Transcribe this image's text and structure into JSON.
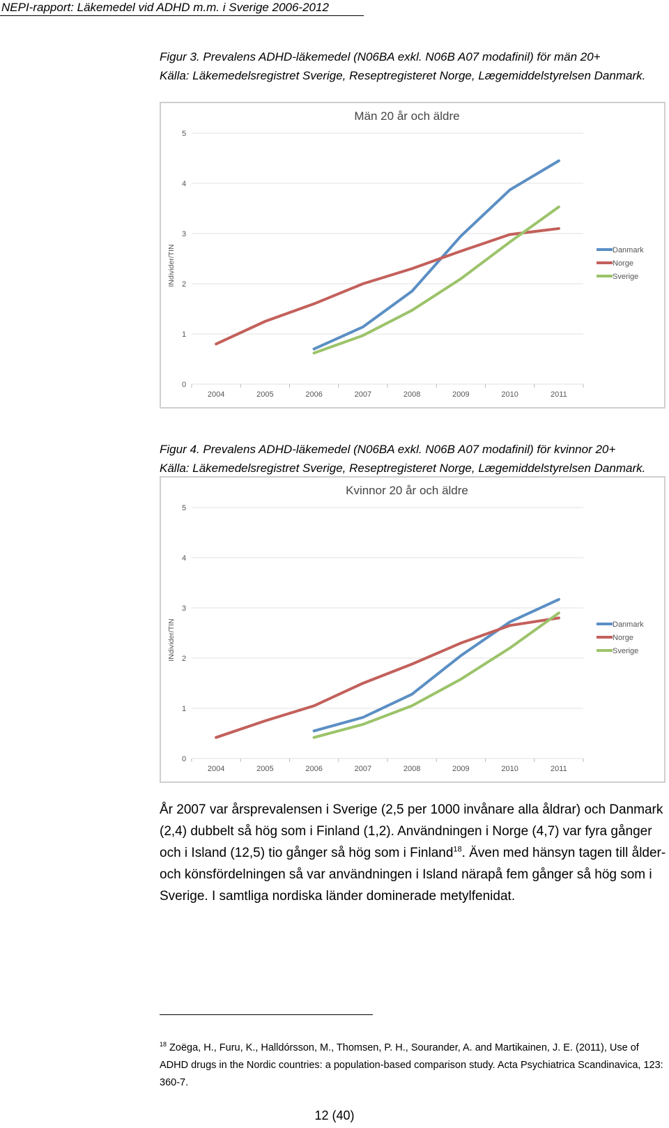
{
  "header": {
    "running_title": "NEPI-rapport: Läkemedel vid ADHD m.m. i Sverige 2006-2012"
  },
  "figure3": {
    "caption_line1": "Figur 3. Prevalens ADHD-läkemedel (N06BA exkl. N06B A07 modafinil) för män 20+",
    "caption_line2": "Källa: Läkemedelsregistret Sverige, Reseptregisteret Norge, Lægemiddelstyrelsen Danmark."
  },
  "figure4": {
    "caption_line1": "Figur 4. Prevalens ADHD-läkemedel (N06BA exkl. N06B A07 modafinil) för kvinnor 20+",
    "caption_line2": "Källa: Läkemedelsregistret Sverige, Reseptregisteret Norge, Lægemiddelstyrelsen Danmark."
  },
  "chart_data": [
    {
      "type": "line",
      "title": "Män 20 år och äldre",
      "xlabel": "",
      "ylabel": "INdivider/TIN",
      "categories": [
        "2004",
        "2005",
        "2006",
        "2007",
        "2008",
        "2009",
        "2010",
        "2011"
      ],
      "yticks": [
        "0",
        "1",
        "2",
        "3",
        "4",
        "5"
      ],
      "ylim": [
        0,
        5
      ],
      "grid": true,
      "legend": "right",
      "series": [
        {
          "name": "Danmark",
          "color": "#5b8fc4",
          "values": [
            null,
            null,
            0.7,
            1.14,
            1.85,
            2.95,
            3.87,
            4.45
          ]
        },
        {
          "name": "Norge",
          "color": "#c3605b",
          "values": [
            0.8,
            1.25,
            1.6,
            2.0,
            2.3,
            2.65,
            2.98,
            3.1
          ]
        },
        {
          "name": "Sverige",
          "color": "#9cc36a",
          "values": [
            null,
            null,
            0.62,
            0.97,
            1.47,
            2.1,
            2.83,
            3.53
          ]
        }
      ]
    },
    {
      "type": "line",
      "title": "Kvinnor 20 år och äldre",
      "xlabel": "",
      "ylabel": "INdivider/TIN",
      "categories": [
        "2004",
        "2005",
        "2006",
        "2007",
        "2008",
        "2009",
        "2010",
        "2011"
      ],
      "yticks": [
        "0",
        "1",
        "2",
        "3",
        "4",
        "5"
      ],
      "ylim": [
        0,
        5
      ],
      "grid": true,
      "legend": "right",
      "series": [
        {
          "name": "Danmark",
          "color": "#5b8fc4",
          "values": [
            null,
            null,
            0.55,
            0.82,
            1.28,
            2.05,
            2.72,
            3.17
          ]
        },
        {
          "name": "Norge",
          "color": "#c3605b",
          "values": [
            0.42,
            0.75,
            1.05,
            1.5,
            1.88,
            2.3,
            2.65,
            2.8
          ]
        },
        {
          "name": "Sverige",
          "color": "#9cc36a",
          "values": [
            null,
            null,
            0.42,
            0.68,
            1.05,
            1.58,
            2.2,
            2.9
          ]
        }
      ]
    }
  ],
  "body": {
    "paragraph_part1": "År 2007 var årsprevalensen i Sverige (2,5 per 1000 invånare alla åldrar) och Danmark (2,4) dubbelt så hög som i Finland (1,2). Användningen i Norge (4,7) var fyra gånger och i Island (12,5) tio gånger så hög som i Finland",
    "footnote_ref": "18",
    "paragraph_part2": ". Även med hänsyn tagen till ålder- och könsfördelningen så var användningen i Island närapå fem gånger så hög som i Sverige.  I samtliga nordiska länder dominerade metylfenidat."
  },
  "footnote": {
    "number": "18",
    "text": " Zoëga, H., Furu, K., Halldórsson, M., Thomsen, P. H., Sourander, A. and Martikainen, J. E. (2011), Use of ADHD drugs in the Nordic countries: a population-based comparison study. Acta Psychiatrica Scandinavica, 123: 360-7."
  },
  "page": {
    "number": "12 (40)"
  }
}
